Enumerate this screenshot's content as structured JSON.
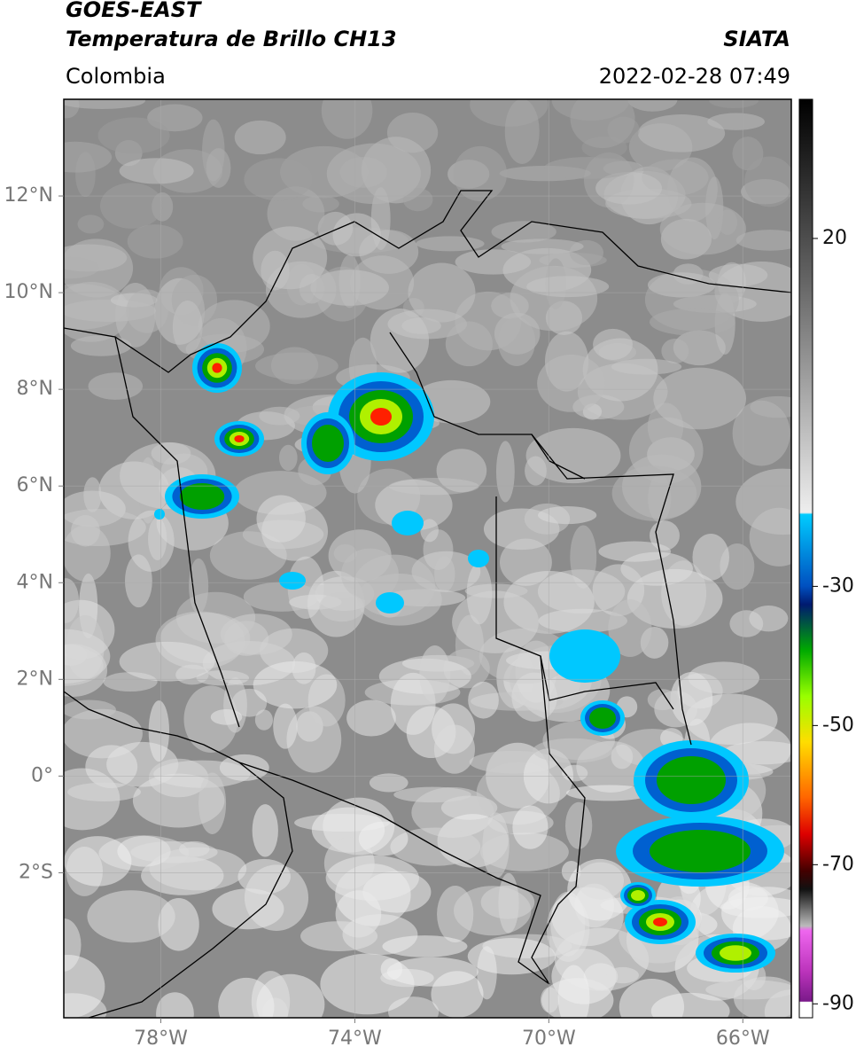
{
  "header": {
    "title_line1": "GOES-EAST",
    "title_line2": "Temperatura de Brillo CH13",
    "source": "SIATA",
    "region": "Colombia",
    "datetime": "2022-02-28 07:49"
  },
  "map": {
    "xlim": [
      -80,
      -65
    ],
    "ylim": [
      -5,
      14
    ],
    "xticks": [
      {
        "value": -78,
        "label": "78°W"
      },
      {
        "value": -74,
        "label": "74°W"
      },
      {
        "value": -70,
        "label": "70°W"
      },
      {
        "value": -66,
        "label": "66°W"
      }
    ],
    "yticks": [
      {
        "value": 12,
        "label": "12°N"
      },
      {
        "value": 10,
        "label": "10°N"
      },
      {
        "value": 8,
        "label": "8°N"
      },
      {
        "value": 6,
        "label": "6°N"
      },
      {
        "value": 4,
        "label": "4°N"
      },
      {
        "value": 2,
        "label": "2°N"
      },
      {
        "value": 0,
        "label": "0°"
      },
      {
        "value": -2,
        "label": "2°S"
      }
    ]
  },
  "colorbar": {
    "lim": [
      -92,
      40
    ],
    "ticks": [
      20,
      -30,
      -50,
      -70,
      -90
    ]
  }
}
